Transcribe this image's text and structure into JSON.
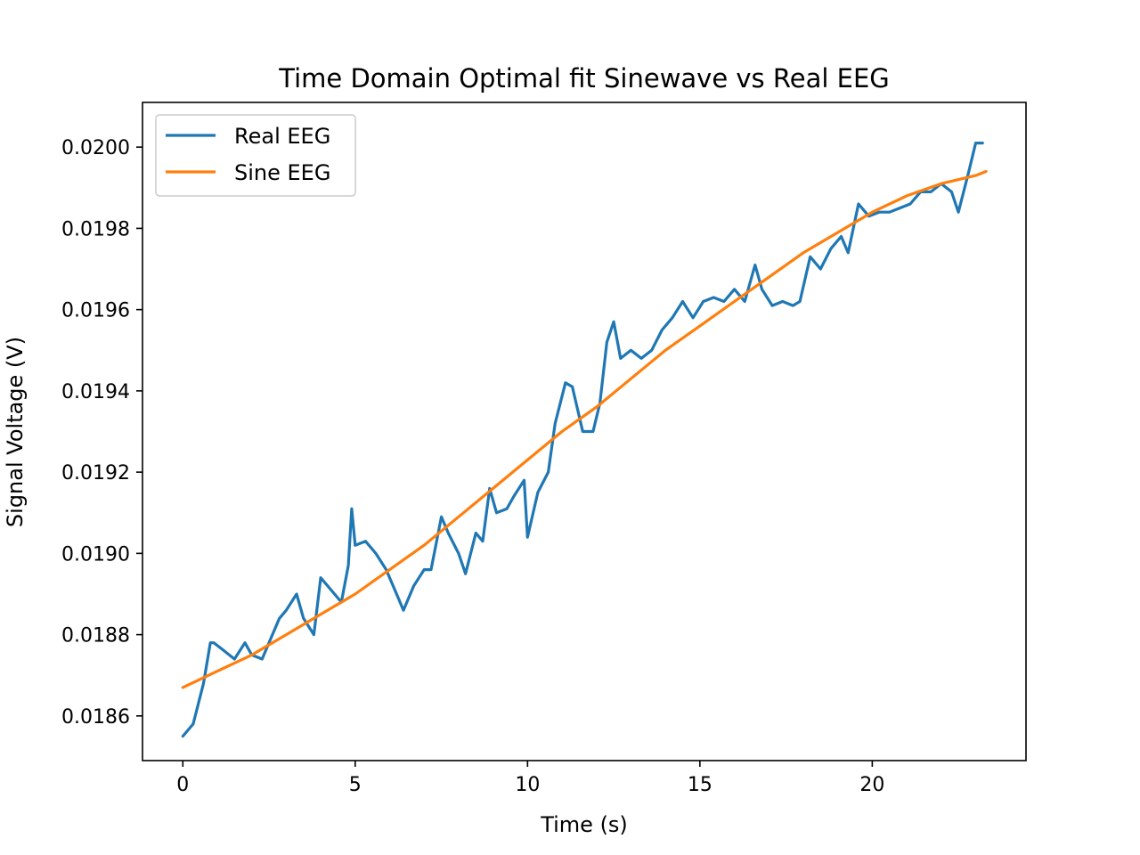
{
  "chart_data": {
    "type": "line",
    "title": "Time Domain Optimal fit Sinewave vs Real EEG",
    "xlabel": "Time (s)",
    "ylabel": "Signal Voltage (V)",
    "xlim": [
      -1.17,
      24.46
    ],
    "ylim": [
      0.01849,
      0.02011
    ],
    "xticks": [
      {
        "value": 0,
        "label": "0"
      },
      {
        "value": 5,
        "label": "5"
      },
      {
        "value": 10,
        "label": "10"
      },
      {
        "value": 15,
        "label": "15"
      },
      {
        "value": 20,
        "label": "20"
      }
    ],
    "yticks": [
      {
        "value": 0.0186,
        "label": "0.0186"
      },
      {
        "value": 0.0188,
        "label": "0.0188"
      },
      {
        "value": 0.019,
        "label": "0.0190"
      },
      {
        "value": 0.0192,
        "label": "0.0192"
      },
      {
        "value": 0.0194,
        "label": "0.0194"
      },
      {
        "value": 0.0196,
        "label": "0.0196"
      },
      {
        "value": 0.0198,
        "label": "0.0198"
      },
      {
        "value": 0.02,
        "label": "0.0200"
      }
    ],
    "grid": false,
    "legend": {
      "position": "top-left",
      "entries": [
        "Real EEG",
        "Sine EEG"
      ]
    },
    "series": [
      {
        "name": "Real EEG",
        "color": "#1f77b4",
        "x": [
          0,
          0.3,
          0.6,
          0.8,
          0.9,
          1.2,
          1.5,
          1.8,
          2.0,
          2.3,
          2.5,
          2.8,
          3.0,
          3.3,
          3.5,
          3.8,
          4.0,
          4.3,
          4.6,
          4.8,
          4.9,
          5.0,
          5.3,
          5.6,
          5.9,
          6.2,
          6.4,
          6.7,
          7.0,
          7.2,
          7.5,
          7.7,
          8.0,
          8.2,
          8.5,
          8.7,
          8.9,
          9.1,
          9.4,
          9.6,
          9.9,
          10.0,
          10.3,
          10.6,
          10.8,
          11.1,
          11.3,
          11.6,
          11.9,
          12.1,
          12.3,
          12.5,
          12.7,
          13.0,
          13.3,
          13.6,
          13.9,
          14.2,
          14.5,
          14.8,
          15.1,
          15.4,
          15.7,
          16.0,
          16.3,
          16.6,
          16.8,
          17.1,
          17.4,
          17.7,
          17.9,
          18.2,
          18.5,
          18.8,
          19.1,
          19.3,
          19.6,
          19.9,
          20.2,
          20.5,
          20.8,
          21.1,
          21.4,
          21.7,
          22.0,
          22.3,
          22.5,
          22.8,
          23.0,
          23.2
        ],
        "y": [
          0.01855,
          0.01858,
          0.01868,
          0.01878,
          0.01878,
          0.01876,
          0.01874,
          0.01878,
          0.01875,
          0.01874,
          0.01878,
          0.01884,
          0.01886,
          0.0189,
          0.01884,
          0.0188,
          0.01894,
          0.01891,
          0.01888,
          0.01897,
          0.01911,
          0.01902,
          0.01903,
          0.019,
          0.01896,
          0.0189,
          0.01886,
          0.01892,
          0.01896,
          0.01896,
          0.01909,
          0.01905,
          0.019,
          0.01895,
          0.01905,
          0.01903,
          0.01916,
          0.0191,
          0.01911,
          0.01914,
          0.01918,
          0.01904,
          0.01915,
          0.0192,
          0.01932,
          0.01942,
          0.01941,
          0.0193,
          0.0193,
          0.01937,
          0.01952,
          0.01957,
          0.01948,
          0.0195,
          0.01948,
          0.0195,
          0.01955,
          0.01958,
          0.01962,
          0.01958,
          0.01962,
          0.01963,
          0.01962,
          0.01965,
          0.01962,
          0.01971,
          0.01965,
          0.01961,
          0.01962,
          0.01961,
          0.01962,
          0.01973,
          0.0197,
          0.01975,
          0.01978,
          0.01974,
          0.01986,
          0.01983,
          0.01984,
          0.01984,
          0.01985,
          0.01986,
          0.01989,
          0.01989,
          0.01991,
          0.01989,
          0.01984,
          0.01994,
          0.02001,
          0.02001
        ]
      },
      {
        "name": "Sine EEG",
        "color": "#ff7f0e",
        "x": [
          0,
          1,
          2,
          3,
          4,
          5,
          6,
          7,
          8,
          9,
          10,
          11,
          12,
          13,
          14,
          15,
          16,
          17,
          18,
          19,
          20,
          21,
          22,
          23,
          23.3
        ],
        "y": [
          0.01867,
          0.01871,
          0.01875,
          0.0188,
          0.01885,
          0.0189,
          0.01896,
          0.01902,
          0.01909,
          0.01916,
          0.01923,
          0.0193,
          0.01936,
          0.01943,
          0.0195,
          0.01956,
          0.01962,
          0.01968,
          0.01974,
          0.01979,
          0.01984,
          0.01988,
          0.01991,
          0.01993,
          0.01994
        ]
      }
    ]
  }
}
